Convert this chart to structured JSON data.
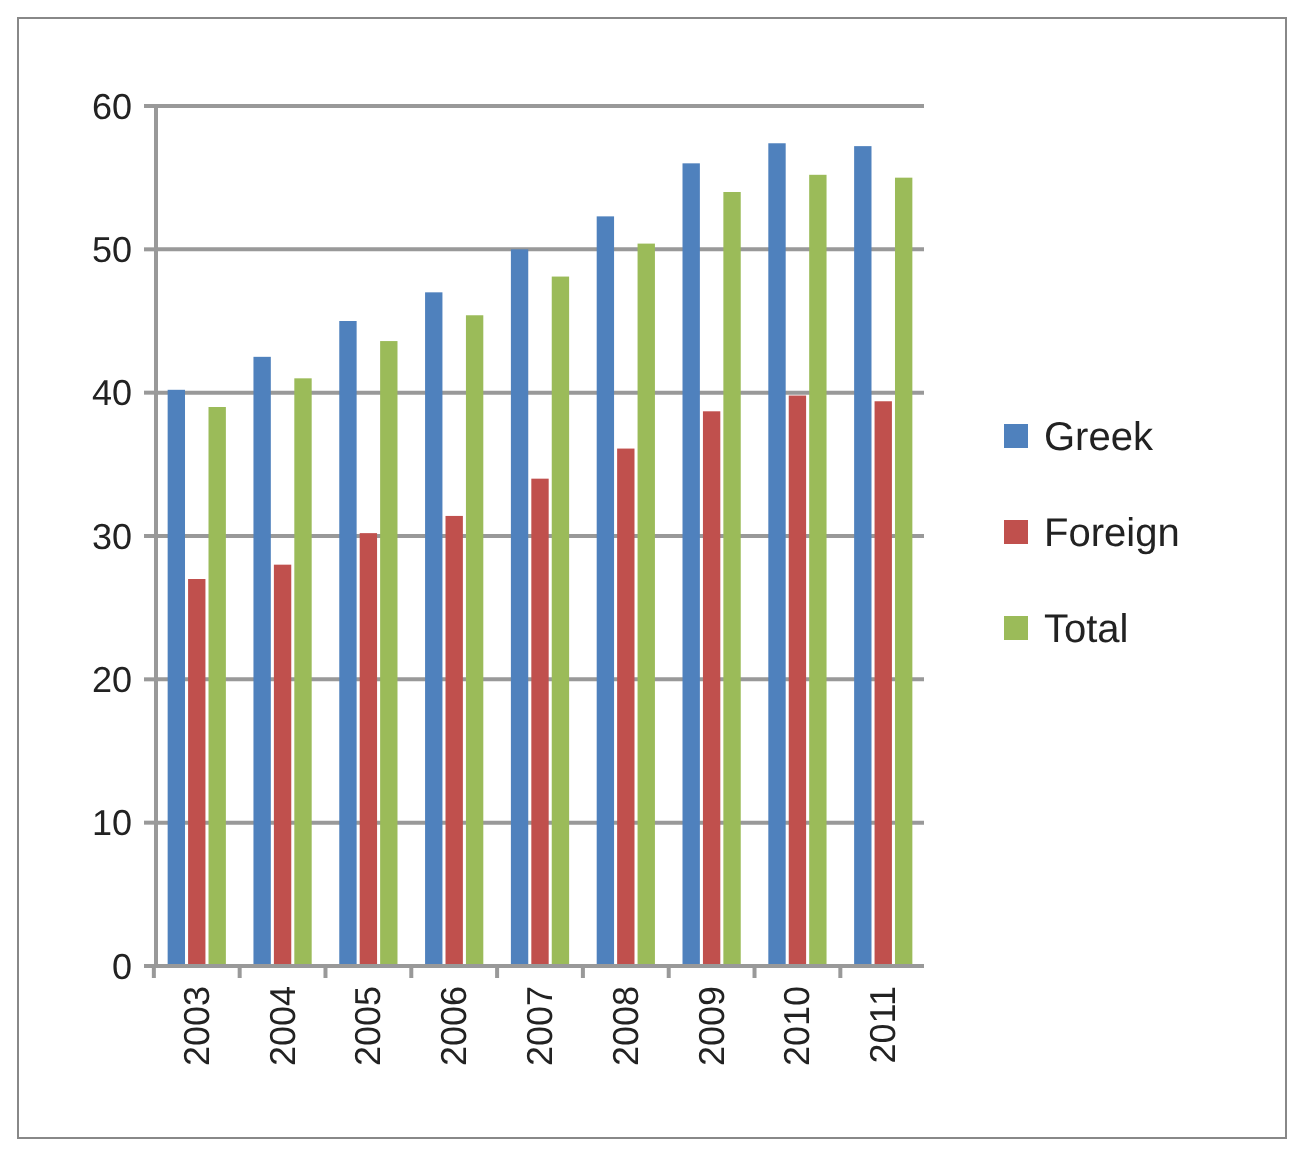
{
  "chart_data": {
    "type": "bar",
    "categories": [
      "2003",
      "2004",
      "2005",
      "2006",
      "2007",
      "2008",
      "2009",
      "2010",
      "2011"
    ],
    "series": [
      {
        "name": "Greek",
        "color": "#4f81bd",
        "values": [
          40.2,
          42.5,
          45,
          47,
          50,
          52.3,
          56,
          57.4,
          57.2
        ]
      },
      {
        "name": "Foreign",
        "color": "#c0504d",
        "values": [
          27,
          28,
          30.2,
          31.4,
          34,
          36.1,
          38.7,
          39.8,
          39.4
        ]
      },
      {
        "name": "Total",
        "color": "#9bbb59",
        "values": [
          39,
          41,
          43.6,
          45.4,
          48.1,
          50.4,
          54,
          55.2,
          55
        ]
      }
    ],
    "ylim": [
      0,
      60
    ],
    "yticks": [
      0,
      10,
      20,
      30,
      40,
      50,
      60
    ],
    "grid": "y",
    "legend": "right"
  }
}
